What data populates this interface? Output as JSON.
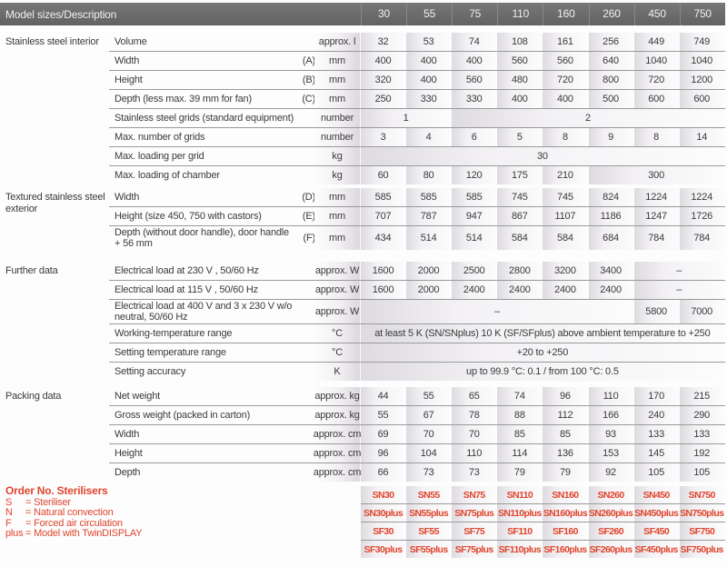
{
  "header": {
    "title": "Model sizes/Description",
    "models": [
      "30",
      "55",
      "75",
      "110",
      "160",
      "260",
      "450",
      "750"
    ]
  },
  "sections": [
    {
      "label": "Stainless steel interior",
      "rows": [
        {
          "desc": "Volume",
          "ref": "",
          "unit": "approx. l",
          "values": [
            "32",
            "53",
            "74",
            "108",
            "161",
            "256",
            "449",
            "749"
          ]
        },
        {
          "desc": "Width",
          "ref": "(A)",
          "unit": "mm",
          "values": [
            "400",
            "400",
            "400",
            "560",
            "560",
            "640",
            "1040",
            "1040"
          ]
        },
        {
          "desc": "Height",
          "ref": "(B)",
          "unit": "mm",
          "values": [
            "320",
            "400",
            "560",
            "480",
            "720",
            "800",
            "720",
            "1200"
          ]
        },
        {
          "desc": "Depth (less max. 39 mm for fan)",
          "ref": "(C)",
          "unit": "mm",
          "values": [
            "250",
            "330",
            "330",
            "400",
            "400",
            "500",
            "600",
            "600"
          ]
        },
        {
          "desc": "Stainless steel grids (standard equipment)",
          "ref": "",
          "unit": "number",
          "values": [
            "1",
            "2"
          ],
          "spans": [
            2,
            6
          ]
        },
        {
          "desc": "Max. number of grids",
          "ref": "",
          "unit": "number",
          "values": [
            "3",
            "4",
            "6",
            "5",
            "8",
            "9",
            "8",
            "14"
          ]
        },
        {
          "desc": "Max. loading per grid",
          "ref": "",
          "unit": "kg",
          "values": [
            "30"
          ],
          "spans": [
            8
          ]
        },
        {
          "desc": "Max. loading of chamber",
          "ref": "",
          "unit": "kg",
          "values": [
            "60",
            "80",
            "120",
            "175",
            "210",
            "300"
          ],
          "spans": [
            1,
            1,
            1,
            1,
            1,
            3
          ]
        }
      ]
    },
    {
      "label": "Textured stainless steel exterior",
      "rows": [
        {
          "desc": "Width",
          "ref": "(D)",
          "unit": "mm",
          "values": [
            "585",
            "585",
            "585",
            "745",
            "745",
            "824",
            "1224",
            "1224"
          ]
        },
        {
          "desc": "Height (size 450, 750 with castors)",
          "ref": "(E)",
          "unit": "mm",
          "values": [
            "707",
            "787",
            "947",
            "867",
            "1107",
            "1186",
            "1247",
            "1726"
          ]
        },
        {
          "desc": "Depth (without door handle), door handle + 56 mm",
          "ref": "(F)",
          "unit": "mm",
          "tall": true,
          "values": [
            "434",
            "514",
            "514",
            "584",
            "584",
            "684",
            "784",
            "784"
          ]
        }
      ]
    },
    {
      "label": "Further data",
      "rows": [
        {
          "desc": "Electrical load at 230 V , 50/60 Hz",
          "ref": "",
          "unit": "approx. W",
          "values": [
            "1600",
            "2000",
            "2500",
            "2800",
            "3200",
            "3400",
            "–"
          ],
          "spans": [
            1,
            1,
            1,
            1,
            1,
            1,
            2
          ]
        },
        {
          "desc": "Electrical load at 115 V , 50/60 Hz",
          "ref": "",
          "unit": "approx. W",
          "values": [
            "1600",
            "2000",
            "2400",
            "2400",
            "2400",
            "2400",
            "–"
          ],
          "spans": [
            1,
            1,
            1,
            1,
            1,
            1,
            2
          ]
        },
        {
          "desc": "Electrical load at 400 V and 3 x 230 V w/o neutral, 50/60 Hz",
          "ref": "",
          "unit": "approx. W",
          "tall": true,
          "values": [
            "–",
            "5800",
            "7000"
          ],
          "spans": [
            6,
            1,
            1
          ]
        },
        {
          "desc": "Working-temperature range",
          "ref": "",
          "unit": "°C",
          "values": [
            "at least 5 K (SN/SNplus) 10 K (SF/SFplus) above ambient temperature to +250"
          ],
          "spans": [
            8
          ]
        },
        {
          "desc": "Setting temperature range",
          "ref": "",
          "unit": "°C",
          "values": [
            "+20 to +250"
          ],
          "spans": [
            8
          ]
        },
        {
          "desc": "Setting accuracy",
          "ref": "",
          "unit": "K",
          "values": [
            "up to 99.9 °C: 0.1 / from 100 °C: 0.5"
          ],
          "spans": [
            8
          ]
        }
      ]
    },
    {
      "label": "Packing data",
      "rows": [
        {
          "desc": "Net weight",
          "ref": "",
          "unit": "approx. kg",
          "values": [
            "44",
            "55",
            "65",
            "74",
            "96",
            "110",
            "170",
            "215"
          ]
        },
        {
          "desc": "Gross weight (packed in carton)",
          "ref": "",
          "unit": "approx. kg",
          "values": [
            "55",
            "67",
            "78",
            "88",
            "112",
            "166",
            "240",
            "290"
          ]
        },
        {
          "desc": "Width",
          "ref": "",
          "unit": "approx. cm",
          "values": [
            "69",
            "70",
            "70",
            "85",
            "85",
            "93",
            "133",
            "133"
          ]
        },
        {
          "desc": "Height",
          "ref": "",
          "unit": "approx. cm",
          "values": [
            "96",
            "104",
            "110",
            "114",
            "136",
            "153",
            "145",
            "192"
          ]
        },
        {
          "desc": "Depth",
          "ref": "",
          "unit": "approx. cm",
          "values": [
            "66",
            "73",
            "73",
            "79",
            "79",
            "92",
            "105",
            "105"
          ]
        }
      ]
    }
  ],
  "order": {
    "title": "Order No. Sterilisers",
    "legend": [
      {
        "key": "S",
        "text": "= Steriliser"
      },
      {
        "key": "N",
        "text": "= Natural convection"
      },
      {
        "key": "F",
        "text": "= Forced air circulation"
      },
      {
        "key": "plus",
        "text": "= Model with TwinDISPLAY"
      }
    ],
    "rows": [
      [
        "SN30",
        "SN55",
        "SN75",
        "SN110",
        "SN160",
        "SN260",
        "SN450",
        "SN750"
      ],
      [
        "SN30plus",
        "SN55plus",
        "SN75plus",
        "SN110plus",
        "SN160plus",
        "SN260plus",
        "SN450plus",
        "SN750plus"
      ],
      [
        "SF30",
        "SF55",
        "SF75",
        "SF110",
        "SF160",
        "SF260",
        "SF450",
        "SF750"
      ],
      [
        "SF30plus",
        "SF55plus",
        "SF75plus",
        "SF110plus",
        "SF160plus",
        "SF260plus",
        "SF450plus",
        "SF750plus"
      ]
    ],
    "accent": "#e0452d"
  }
}
